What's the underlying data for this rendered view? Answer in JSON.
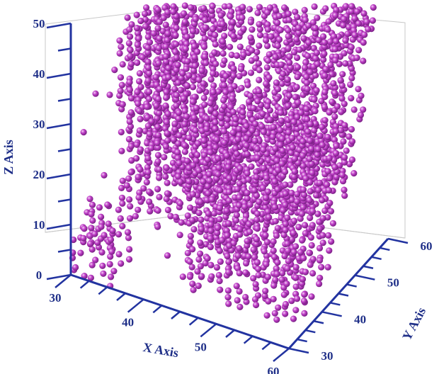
{
  "chart_data": {
    "type": "scatter",
    "dimensions": 3,
    "xlabel": "X Axis",
    "ylabel": "Y Axis",
    "zlabel": "Z Axis",
    "xlim": [
      30,
      60
    ],
    "ylim": [
      30,
      60
    ],
    "zlim": [
      0,
      50
    ],
    "x_ticks": [
      "30",
      "40",
      "50",
      "60"
    ],
    "y_ticks": [
      "30",
      "40",
      "50",
      "60"
    ],
    "z_ticks": [
      "0",
      "10",
      "20",
      "30",
      "40",
      "50"
    ],
    "marker": "sphere",
    "marker_color": "#c040c8",
    "highlight_color": "#f4d2f6",
    "axis_color": "#2233a0",
    "grid": true,
    "series": [
      {
        "description_points": "dense voxel cloud forming a block with a circular hole; clusters given as ranges",
        "clusters": [
          {
            "x": [
              32,
              44
            ],
            "y": [
              50,
              58
            ],
            "z": [
              8,
              48
            ]
          },
          {
            "x": [
              34,
              46
            ],
            "y": [
              36,
              48
            ],
            "z": [
              10,
              46
            ]
          },
          {
            "x": [
              44,
              60
            ],
            "y": [
              32,
              44
            ],
            "z": [
              2,
              30
            ]
          },
          {
            "x": [
              46,
              60
            ],
            "y": [
              44,
              58
            ],
            "z": [
              10,
              46
            ]
          },
          {
            "x": [
              30,
              36
            ],
            "y": [
              30,
              36
            ],
            "z": [
              0,
              10
            ]
          },
          {
            "x": [
              56,
              60
            ],
            "y": [
              52,
              60
            ],
            "z": [
              36,
              50
            ]
          }
        ]
      }
    ]
  }
}
